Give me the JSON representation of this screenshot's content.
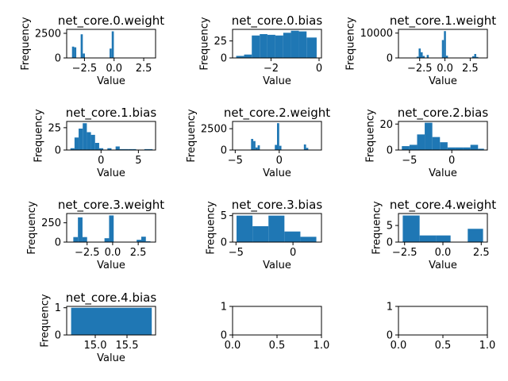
{
  "figure": {
    "background": "#ffffff",
    "bar_color": "#1f77b4"
  },
  "chart_data": [
    {
      "type": "bar",
      "title": "net_core.0.weight",
      "xlabel": "Value",
      "ylabel": "Frequency",
      "xlim": [
        -4.0,
        3.5
      ],
      "ylim": [
        0,
        2900
      ],
      "xticks": [
        -2.5,
        0.0,
        2.5
      ],
      "xtick_labels": [
        "−2.5",
        "0.0",
        "2.5"
      ],
      "yticks": [
        0,
        2500
      ],
      "ytick_labels": [
        "0",
        "2500"
      ],
      "bars": [
        {
          "x0": -3.55,
          "x1": -3.37,
          "value": 1150
        },
        {
          "x0": -3.37,
          "x1": -3.19,
          "value": 1080
        },
        {
          "x0": -2.82,
          "x1": -2.64,
          "value": 2400
        },
        {
          "x0": -2.64,
          "x1": -2.46,
          "value": 450
        },
        {
          "x0": -0.38,
          "x1": -0.2,
          "value": 950
        },
        {
          "x0": -0.2,
          "x1": -0.02,
          "value": 2700
        }
      ]
    },
    {
      "type": "bar",
      "title": "net_core.0.bias",
      "xlabel": "Value",
      "ylabel": "Frequency",
      "xlim": [
        -3.6,
        0.1
      ],
      "ylim": [
        0,
        42
      ],
      "xticks": [
        -2,
        0
      ],
      "xtick_labels": [
        "−2",
        "0"
      ],
      "yticks": [
        0,
        25
      ],
      "ytick_labels": [
        "0",
        "25"
      ],
      "bars": [
        {
          "x0": -3.45,
          "x1": -3.12,
          "value": 3
        },
        {
          "x0": -3.12,
          "x1": -2.8,
          "value": 5
        },
        {
          "x0": -2.8,
          "x1": -2.47,
          "value": 33
        },
        {
          "x0": -2.47,
          "x1": -2.15,
          "value": 35
        },
        {
          "x0": -2.15,
          "x1": -1.82,
          "value": 34
        },
        {
          "x0": -1.82,
          "x1": -1.49,
          "value": 33
        },
        {
          "x0": -1.49,
          "x1": -1.17,
          "value": 37
        },
        {
          "x0": -1.17,
          "x1": -0.84,
          "value": 40
        },
        {
          "x0": -0.84,
          "x1": -0.52,
          "value": 39
        },
        {
          "x0": -0.52,
          "x1": -0.1,
          "value": 30
        }
      ]
    },
    {
      "type": "bar",
      "title": "net_core.1.weight",
      "xlabel": "Value",
      "ylabel": "Frequency",
      "xlim": [
        -4.6,
        4.2
      ],
      "ylim": [
        0,
        11500
      ],
      "xticks": [
        -2.5,
        0.0,
        2.5
      ],
      "xtick_labels": [
        "−2.5",
        "0.0",
        "2.5"
      ],
      "yticks": [
        0,
        10000
      ],
      "ytick_labels": [
        "0",
        "10000"
      ],
      "bars": [
        {
          "x0": -2.8,
          "x1": -2.6,
          "value": 500
        },
        {
          "x0": -2.6,
          "x1": -2.4,
          "value": 3800
        },
        {
          "x0": -2.4,
          "x1": -2.2,
          "value": 2300
        },
        {
          "x0": -2.2,
          "x1": -2.0,
          "value": 800
        },
        {
          "x0": -1.8,
          "x1": -1.6,
          "value": 1200
        },
        {
          "x0": -0.3,
          "x1": -0.1,
          "value": 7200
        },
        {
          "x0": -0.1,
          "x1": 0.1,
          "value": 10800
        },
        {
          "x0": 0.1,
          "x1": 0.3,
          "value": 900
        },
        {
          "x0": 2.7,
          "x1": 2.9,
          "value": 700
        },
        {
          "x0": 2.9,
          "x1": 3.1,
          "value": 1600
        },
        {
          "x0": 3.1,
          "x1": 3.3,
          "value": 400
        }
      ]
    },
    {
      "type": "bar",
      "title": "net_core.1.bias",
      "xlabel": "Value",
      "ylabel": "Frequency",
      "xlim": [
        -4.6,
        7.3
      ],
      "ylim": [
        0,
        32
      ],
      "xticks": [
        0,
        5
      ],
      "xtick_labels": [
        "0",
        "5"
      ],
      "yticks": [
        0,
        25
      ],
      "ytick_labels": [
        "0",
        "25"
      ],
      "bars": [
        {
          "x0": -4.1,
          "x1": -3.55,
          "value": 2
        },
        {
          "x0": -3.55,
          "x1": -3.0,
          "value": 14
        },
        {
          "x0": -3.0,
          "x1": -2.45,
          "value": 24
        },
        {
          "x0": -2.45,
          "x1": -1.9,
          "value": 30
        },
        {
          "x0": -1.9,
          "x1": -1.35,
          "value": 20
        },
        {
          "x0": -1.35,
          "x1": -0.8,
          "value": 17
        },
        {
          "x0": -0.8,
          "x1": -0.25,
          "value": 8
        },
        {
          "x0": -0.25,
          "x1": 0.3,
          "value": 2
        },
        {
          "x0": 0.85,
          "x1": 1.4,
          "value": 2
        },
        {
          "x0": 1.95,
          "x1": 2.5,
          "value": 4
        },
        {
          "x0": 2.5,
          "x1": 3.05,
          "value": 1
        },
        {
          "x0": 3.05,
          "x1": 3.6,
          "value": 1
        },
        {
          "x0": 3.6,
          "x1": 4.15,
          "value": 1
        },
        {
          "x0": 4.15,
          "x1": 4.7,
          "value": 1
        },
        {
          "x0": 5.8,
          "x1": 6.9,
          "value": 1
        }
      ]
    },
    {
      "type": "bar",
      "title": "net_core.2.weight",
      "xlabel": "Value",
      "ylabel": "Frequency",
      "xlim": [
        -5.3,
        4.8
      ],
      "ylim": [
        0,
        3350
      ],
      "xticks": [
        -5,
        0
      ],
      "xtick_labels": [
        "−5",
        "0"
      ],
      "yticks": [
        0,
        2500
      ],
      "ytick_labels": [
        "0",
        "2500"
      ],
      "bars": [
        {
          "x0": -3.2,
          "x1": -2.95,
          "value": 1300
        },
        {
          "x0": -2.95,
          "x1": -2.7,
          "value": 1050
        },
        {
          "x0": -2.7,
          "x1": -2.45,
          "value": 300
        },
        {
          "x0": -2.45,
          "x1": -2.2,
          "value": 550
        },
        {
          "x0": -0.5,
          "x1": -0.25,
          "value": 600
        },
        {
          "x0": -0.25,
          "x1": 0.0,
          "value": 3150
        },
        {
          "x0": 0.0,
          "x1": 0.25,
          "value": 500
        },
        {
          "x0": 2.8,
          "x1": 3.05,
          "value": 650
        },
        {
          "x0": 3.05,
          "x1": 3.3,
          "value": 250
        }
      ]
    },
    {
      "type": "bar",
      "title": "net_core.2.bias",
      "xlabel": "Value",
      "ylabel": "Frequency",
      "xlim": [
        -6.3,
        4.2
      ],
      "ylim": [
        0,
        22
      ],
      "xticks": [
        -5,
        0
      ],
      "xtick_labels": [
        "−5",
        "0"
      ],
      "yticks": [
        0,
        20
      ],
      "ytick_labels": [
        "0",
        "20"
      ],
      "bars": [
        {
          "x0": -5.9,
          "x1": -5.0,
          "value": 3
        },
        {
          "x0": -5.0,
          "x1": -4.1,
          "value": 4
        },
        {
          "x0": -4.1,
          "x1": -3.2,
          "value": 12
        },
        {
          "x0": -3.2,
          "x1": -2.3,
          "value": 21
        },
        {
          "x0": -2.3,
          "x1": -1.4,
          "value": 10
        },
        {
          "x0": -1.4,
          "x1": -0.5,
          "value": 6
        },
        {
          "x0": -0.5,
          "x1": 0.4,
          "value": 2
        },
        {
          "x0": 0.4,
          "x1": 1.3,
          "value": 2
        },
        {
          "x0": 1.3,
          "x1": 2.2,
          "value": 2
        },
        {
          "x0": 2.2,
          "x1": 3.1,
          "value": 4
        },
        {
          "x0": 3.1,
          "x1": 3.8,
          "value": 1
        }
      ]
    },
    {
      "type": "bar",
      "title": "net_core.3.weight",
      "xlabel": "Value",
      "ylabel": "Frequency",
      "xlim": [
        -4.5,
        4.2
      ],
      "ylim": [
        0,
        370
      ],
      "xticks": [
        -2.5,
        0.0,
        2.5
      ],
      "xtick_labels": [
        "−2.5",
        "0.0",
        "2.5"
      ],
      "yticks": [
        0,
        250
      ],
      "ytick_labels": [
        "0",
        "250"
      ],
      "bars": [
        {
          "x0": -3.85,
          "x1": -3.4,
          "value": 65
        },
        {
          "x0": -3.4,
          "x1": -2.95,
          "value": 320
        },
        {
          "x0": -2.95,
          "x1": -2.5,
          "value": 65
        },
        {
          "x0": -0.8,
          "x1": -0.35,
          "value": 50
        },
        {
          "x0": -0.35,
          "x1": 0.1,
          "value": 345
        },
        {
          "x0": 2.35,
          "x1": 2.8,
          "value": 30
        },
        {
          "x0": 2.8,
          "x1": 3.25,
          "value": 70
        },
        {
          "x0": 3.25,
          "x1": 3.7,
          "value": 10
        }
      ]
    },
    {
      "type": "bar",
      "title": "net_core.3.bias",
      "xlabel": "Value",
      "ylabel": "Frequency",
      "xlim": [
        -5.3,
        2.5
      ],
      "ylim": [
        0,
        5.4
      ],
      "xticks": [
        -5,
        0
      ],
      "xtick_labels": [
        "−5",
        "0"
      ],
      "yticks": [
        0,
        5
      ],
      "ytick_labels": [
        "0",
        "5"
      ],
      "bars": [
        {
          "x0": -4.95,
          "x1": -3.55,
          "value": 5
        },
        {
          "x0": -3.55,
          "x1": -2.15,
          "value": 3
        },
        {
          "x0": -2.15,
          "x1": -0.75,
          "value": 5
        },
        {
          "x0": -0.75,
          "x1": 0.65,
          "value": 2
        },
        {
          "x0": 0.65,
          "x1": 2.05,
          "value": 1
        }
      ]
    },
    {
      "type": "bar",
      "title": "net_core.4.weight",
      "xlabel": "Value",
      "ylabel": "Frequency",
      "xlim": [
        -2.9,
        2.9
      ],
      "ylim": [
        0,
        8.6
      ],
      "xticks": [
        -2.5,
        0.0,
        2.5
      ],
      "xtick_labels": [
        "−2.5",
        "0.0",
        "2.5"
      ],
      "yticks": [
        0,
        5
      ],
      "ytick_labels": [
        "0",
        "5"
      ],
      "bars": [
        {
          "x0": -2.62,
          "x1": -1.52,
          "value": 8
        },
        {
          "x0": -1.52,
          "x1": -0.42,
          "value": 2
        },
        {
          "x0": -0.42,
          "x1": 0.5,
          "value": 2
        },
        {
          "x0": 1.62,
          "x1": 2.62,
          "value": 4
        }
      ]
    },
    {
      "type": "bar",
      "title": "net_core.4.bias",
      "xlabel": "Value",
      "ylabel": "Frequency",
      "xlim": [
        14.55,
        15.95
      ],
      "ylim": [
        0,
        1.05
      ],
      "xticks": [
        15.0,
        15.5
      ],
      "xtick_labels": [
        "15.0",
        "15.5"
      ],
      "yticks": [
        0,
        1
      ],
      "ytick_labels": [
        "0",
        "1"
      ],
      "bars": [
        {
          "x0": 14.62,
          "x1": 15.89,
          "value": 1
        }
      ]
    },
    {
      "type": "bar",
      "title": "",
      "xlabel": "",
      "ylabel": "",
      "xlim": [
        0,
        1
      ],
      "ylim": [
        0,
        1
      ],
      "xticks": [
        0,
        0.5,
        1
      ],
      "xtick_labels": [
        "0.0",
        "0.5",
        "1.0"
      ],
      "yticks": [
        0,
        1
      ],
      "ytick_labels": [
        "0",
        "1"
      ],
      "bars": []
    },
    {
      "type": "bar",
      "title": "",
      "xlabel": "",
      "ylabel": "",
      "xlim": [
        0,
        1
      ],
      "ylim": [
        0,
        1
      ],
      "xticks": [
        0,
        0.5,
        1
      ],
      "xtick_labels": [
        "0.0",
        "0.5",
        "1.0"
      ],
      "yticks": [
        0,
        1
      ],
      "ytick_labels": [
        "0",
        "1"
      ],
      "bars": []
    }
  ]
}
